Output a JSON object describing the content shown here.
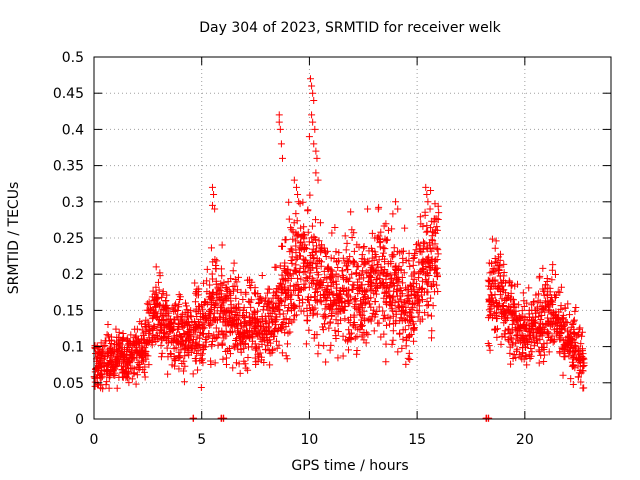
{
  "chart_data": {
    "type": "scatter",
    "title": "Day 304 of 2023, SRMTID for receiver welk",
    "xlabel": "GPS time / hours",
    "ylabel": "SRMTID / TECUs",
    "xlim": [
      0,
      24
    ],
    "ylim": [
      0,
      0.5
    ],
    "x_ticks": [
      0,
      5,
      10,
      15,
      20
    ],
    "y_ticks": [
      0,
      0.05,
      0.1,
      0.15,
      0.2,
      0.25,
      0.3,
      0.35,
      0.4,
      0.45,
      0.5
    ],
    "x_tick_labels": [
      "0",
      "5",
      "10",
      "15",
      "20"
    ],
    "y_tick_labels": [
      "0",
      "0.05",
      "0.1",
      "0.15",
      "0.2",
      "0.25",
      "0.3",
      "0.35",
      "0.4",
      "0.45",
      "0.5"
    ],
    "grid": true,
    "marker": "+",
    "series": [
      {
        "name": "SRMTID",
        "color": "#ff0000",
        "profile": [
          [
            0.0,
            0.07,
            0.018
          ],
          [
            0.25,
            0.072,
            0.02
          ],
          [
            0.5,
            0.08,
            0.02
          ],
          [
            0.75,
            0.082,
            0.022
          ],
          [
            1.0,
            0.085,
            0.025
          ],
          [
            1.25,
            0.088,
            0.022
          ],
          [
            1.5,
            0.085,
            0.02
          ],
          [
            1.75,
            0.088,
            0.022
          ],
          [
            2.0,
            0.092,
            0.02
          ],
          [
            2.25,
            0.095,
            0.02
          ],
          [
            2.5,
            0.12,
            0.03
          ],
          [
            2.75,
            0.14,
            0.03
          ],
          [
            3.0,
            0.15,
            0.03
          ],
          [
            3.25,
            0.14,
            0.03
          ],
          [
            3.5,
            0.13,
            0.03
          ],
          [
            3.75,
            0.12,
            0.03
          ],
          [
            4.0,
            0.12,
            0.03
          ],
          [
            4.25,
            0.11,
            0.03
          ],
          [
            4.5,
            0.12,
            0.03
          ],
          [
            4.75,
            0.13,
            0.03
          ],
          [
            5.0,
            0.12,
            0.03
          ],
          [
            5.25,
            0.14,
            0.035
          ],
          [
            5.5,
            0.15,
            0.04
          ],
          [
            5.75,
            0.16,
            0.04
          ],
          [
            6.0,
            0.15,
            0.035
          ],
          [
            6.25,
            0.14,
            0.03
          ],
          [
            6.5,
            0.14,
            0.035
          ],
          [
            6.75,
            0.13,
            0.035
          ],
          [
            7.0,
            0.13,
            0.035
          ],
          [
            7.25,
            0.14,
            0.035
          ],
          [
            7.5,
            0.13,
            0.03
          ],
          [
            7.75,
            0.13,
            0.03
          ],
          [
            8.0,
            0.13,
            0.03
          ],
          [
            8.25,
            0.14,
            0.035
          ],
          [
            8.5,
            0.15,
            0.04
          ],
          [
            8.75,
            0.17,
            0.05
          ],
          [
            9.0,
            0.19,
            0.05
          ],
          [
            9.25,
            0.2,
            0.05
          ],
          [
            9.5,
            0.21,
            0.05
          ],
          [
            9.75,
            0.21,
            0.05
          ],
          [
            10.0,
            0.22,
            0.06
          ],
          [
            10.25,
            0.2,
            0.06
          ],
          [
            10.5,
            0.2,
            0.05
          ],
          [
            10.75,
            0.18,
            0.05
          ],
          [
            11.0,
            0.17,
            0.04
          ],
          [
            11.25,
            0.17,
            0.04
          ],
          [
            11.5,
            0.17,
            0.04
          ],
          [
            11.75,
            0.18,
            0.045
          ],
          [
            12.0,
            0.19,
            0.05
          ],
          [
            12.25,
            0.18,
            0.045
          ],
          [
            12.5,
            0.17,
            0.04
          ],
          [
            12.75,
            0.18,
            0.045
          ],
          [
            13.0,
            0.18,
            0.045
          ],
          [
            13.25,
            0.19,
            0.05
          ],
          [
            13.5,
            0.19,
            0.05
          ],
          [
            13.75,
            0.18,
            0.045
          ],
          [
            14.0,
            0.17,
            0.045
          ],
          [
            14.25,
            0.17,
            0.045
          ],
          [
            14.5,
            0.16,
            0.04
          ],
          [
            14.75,
            0.16,
            0.04
          ],
          [
            15.0,
            0.18,
            0.045
          ],
          [
            15.25,
            0.21,
            0.05
          ],
          [
            15.5,
            0.22,
            0.05
          ],
          [
            15.75,
            0.22,
            0.05
          ],
          [
            16.0,
            0.22,
            0.05
          ],
          [
            18.3,
            0.17,
            0.04
          ],
          [
            18.5,
            0.17,
            0.04
          ],
          [
            18.75,
            0.18,
            0.04
          ],
          [
            19.0,
            0.17,
            0.035
          ],
          [
            19.25,
            0.15,
            0.03
          ],
          [
            19.5,
            0.13,
            0.03
          ],
          [
            19.75,
            0.12,
            0.025
          ],
          [
            20.0,
            0.12,
            0.025
          ],
          [
            20.25,
            0.12,
            0.025
          ],
          [
            20.5,
            0.13,
            0.03
          ],
          [
            20.75,
            0.14,
            0.035
          ],
          [
            21.0,
            0.15,
            0.035
          ],
          [
            21.25,
            0.15,
            0.035
          ],
          [
            21.5,
            0.14,
            0.03
          ],
          [
            21.75,
            0.12,
            0.03
          ],
          [
            22.0,
            0.11,
            0.03
          ],
          [
            22.25,
            0.1,
            0.03
          ],
          [
            22.5,
            0.09,
            0.025
          ],
          [
            22.75,
            0.08,
            0.02
          ]
        ],
        "gaps": [
          [
            0.0,
            0.3
          ],
          [
            16.0,
            18.3
          ],
          [
            22.8,
            24
          ]
        ],
        "spikes": [
          [
            10.05,
            0.47
          ],
          [
            10.1,
            0.46
          ],
          [
            10.15,
            0.45
          ],
          [
            10.2,
            0.44
          ],
          [
            10.1,
            0.42
          ],
          [
            10.15,
            0.41
          ],
          [
            10.25,
            0.4
          ],
          [
            10.0,
            0.39
          ],
          [
            10.2,
            0.38
          ],
          [
            10.3,
            0.37
          ],
          [
            10.35,
            0.36
          ],
          [
            10.3,
            0.34
          ],
          [
            10.4,
            0.33
          ],
          [
            8.6,
            0.42
          ],
          [
            8.6,
            0.41
          ],
          [
            8.65,
            0.4
          ],
          [
            8.7,
            0.38
          ],
          [
            8.75,
            0.36
          ],
          [
            9.3,
            0.33
          ],
          [
            9.4,
            0.32
          ],
          [
            9.45,
            0.31
          ],
          [
            9.5,
            0.3
          ],
          [
            5.5,
            0.32
          ],
          [
            5.55,
            0.31
          ],
          [
            5.5,
            0.295
          ],
          [
            5.6,
            0.29
          ],
          [
            15.4,
            0.32
          ],
          [
            15.45,
            0.31
          ],
          [
            15.5,
            0.3
          ],
          [
            15.6,
            0.29
          ],
          [
            16.0,
            0.285
          ],
          [
            14.0,
            0.3
          ],
          [
            14.1,
            0.29
          ],
          [
            13.2,
            0.29
          ],
          [
            12.7,
            0.29
          ]
        ],
        "zeros": [
          4.6,
          5.9,
          6.0,
          18.2,
          18.3
        ]
      }
    ]
  }
}
